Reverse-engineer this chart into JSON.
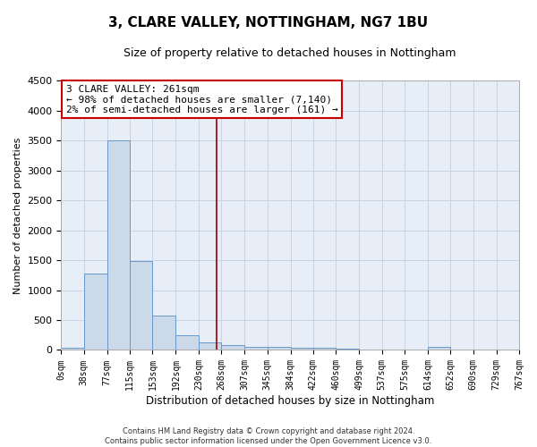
{
  "title": "3, CLARE VALLEY, NOTTINGHAM, NG7 1BU",
  "subtitle": "Size of property relative to detached houses in Nottingham",
  "xlabel": "Distribution of detached houses by size in Nottingham",
  "ylabel": "Number of detached properties",
  "bar_color": "#ccd9e8",
  "bar_edge_color": "#6699cc",
  "bg_color": "#e8eef8",
  "grid_color": "#c8d4e4",
  "vline_x": 261,
  "vline_color": "#990000",
  "bin_edges": [
    0,
    38,
    77,
    115,
    153,
    192,
    230,
    268,
    307,
    345,
    384,
    422,
    460,
    499,
    537,
    575,
    614,
    652,
    690,
    729,
    767
  ],
  "bar_heights": [
    35,
    1270,
    3500,
    1480,
    575,
    240,
    120,
    85,
    55,
    45,
    35,
    30,
    25,
    5,
    0,
    0,
    50,
    0,
    0,
    0
  ],
  "ylim": [
    0,
    4500
  ],
  "yticks": [
    0,
    500,
    1000,
    1500,
    2000,
    2500,
    3000,
    3500,
    4000,
    4500
  ],
  "annotation_line1": "3 CLARE VALLEY: 261sqm",
  "annotation_line2": "← 98% of detached houses are smaller (7,140)",
  "annotation_line3": "2% of semi-detached houses are larger (161) →",
  "annotation_box_color": "#ffffff",
  "annotation_box_edge": "#cc0000",
  "footer_line1": "Contains HM Land Registry data © Crown copyright and database right 2024.",
  "footer_line2": "Contains public sector information licensed under the Open Government Licence v3.0.",
  "tick_labels": [
    "0sqm",
    "38sqm",
    "77sqm",
    "115sqm",
    "153sqm",
    "192sqm",
    "230sqm",
    "268sqm",
    "307sqm",
    "345sqm",
    "384sqm",
    "422sqm",
    "460sqm",
    "499sqm",
    "537sqm",
    "575sqm",
    "614sqm",
    "652sqm",
    "690sqm",
    "729sqm",
    "767sqm"
  ]
}
